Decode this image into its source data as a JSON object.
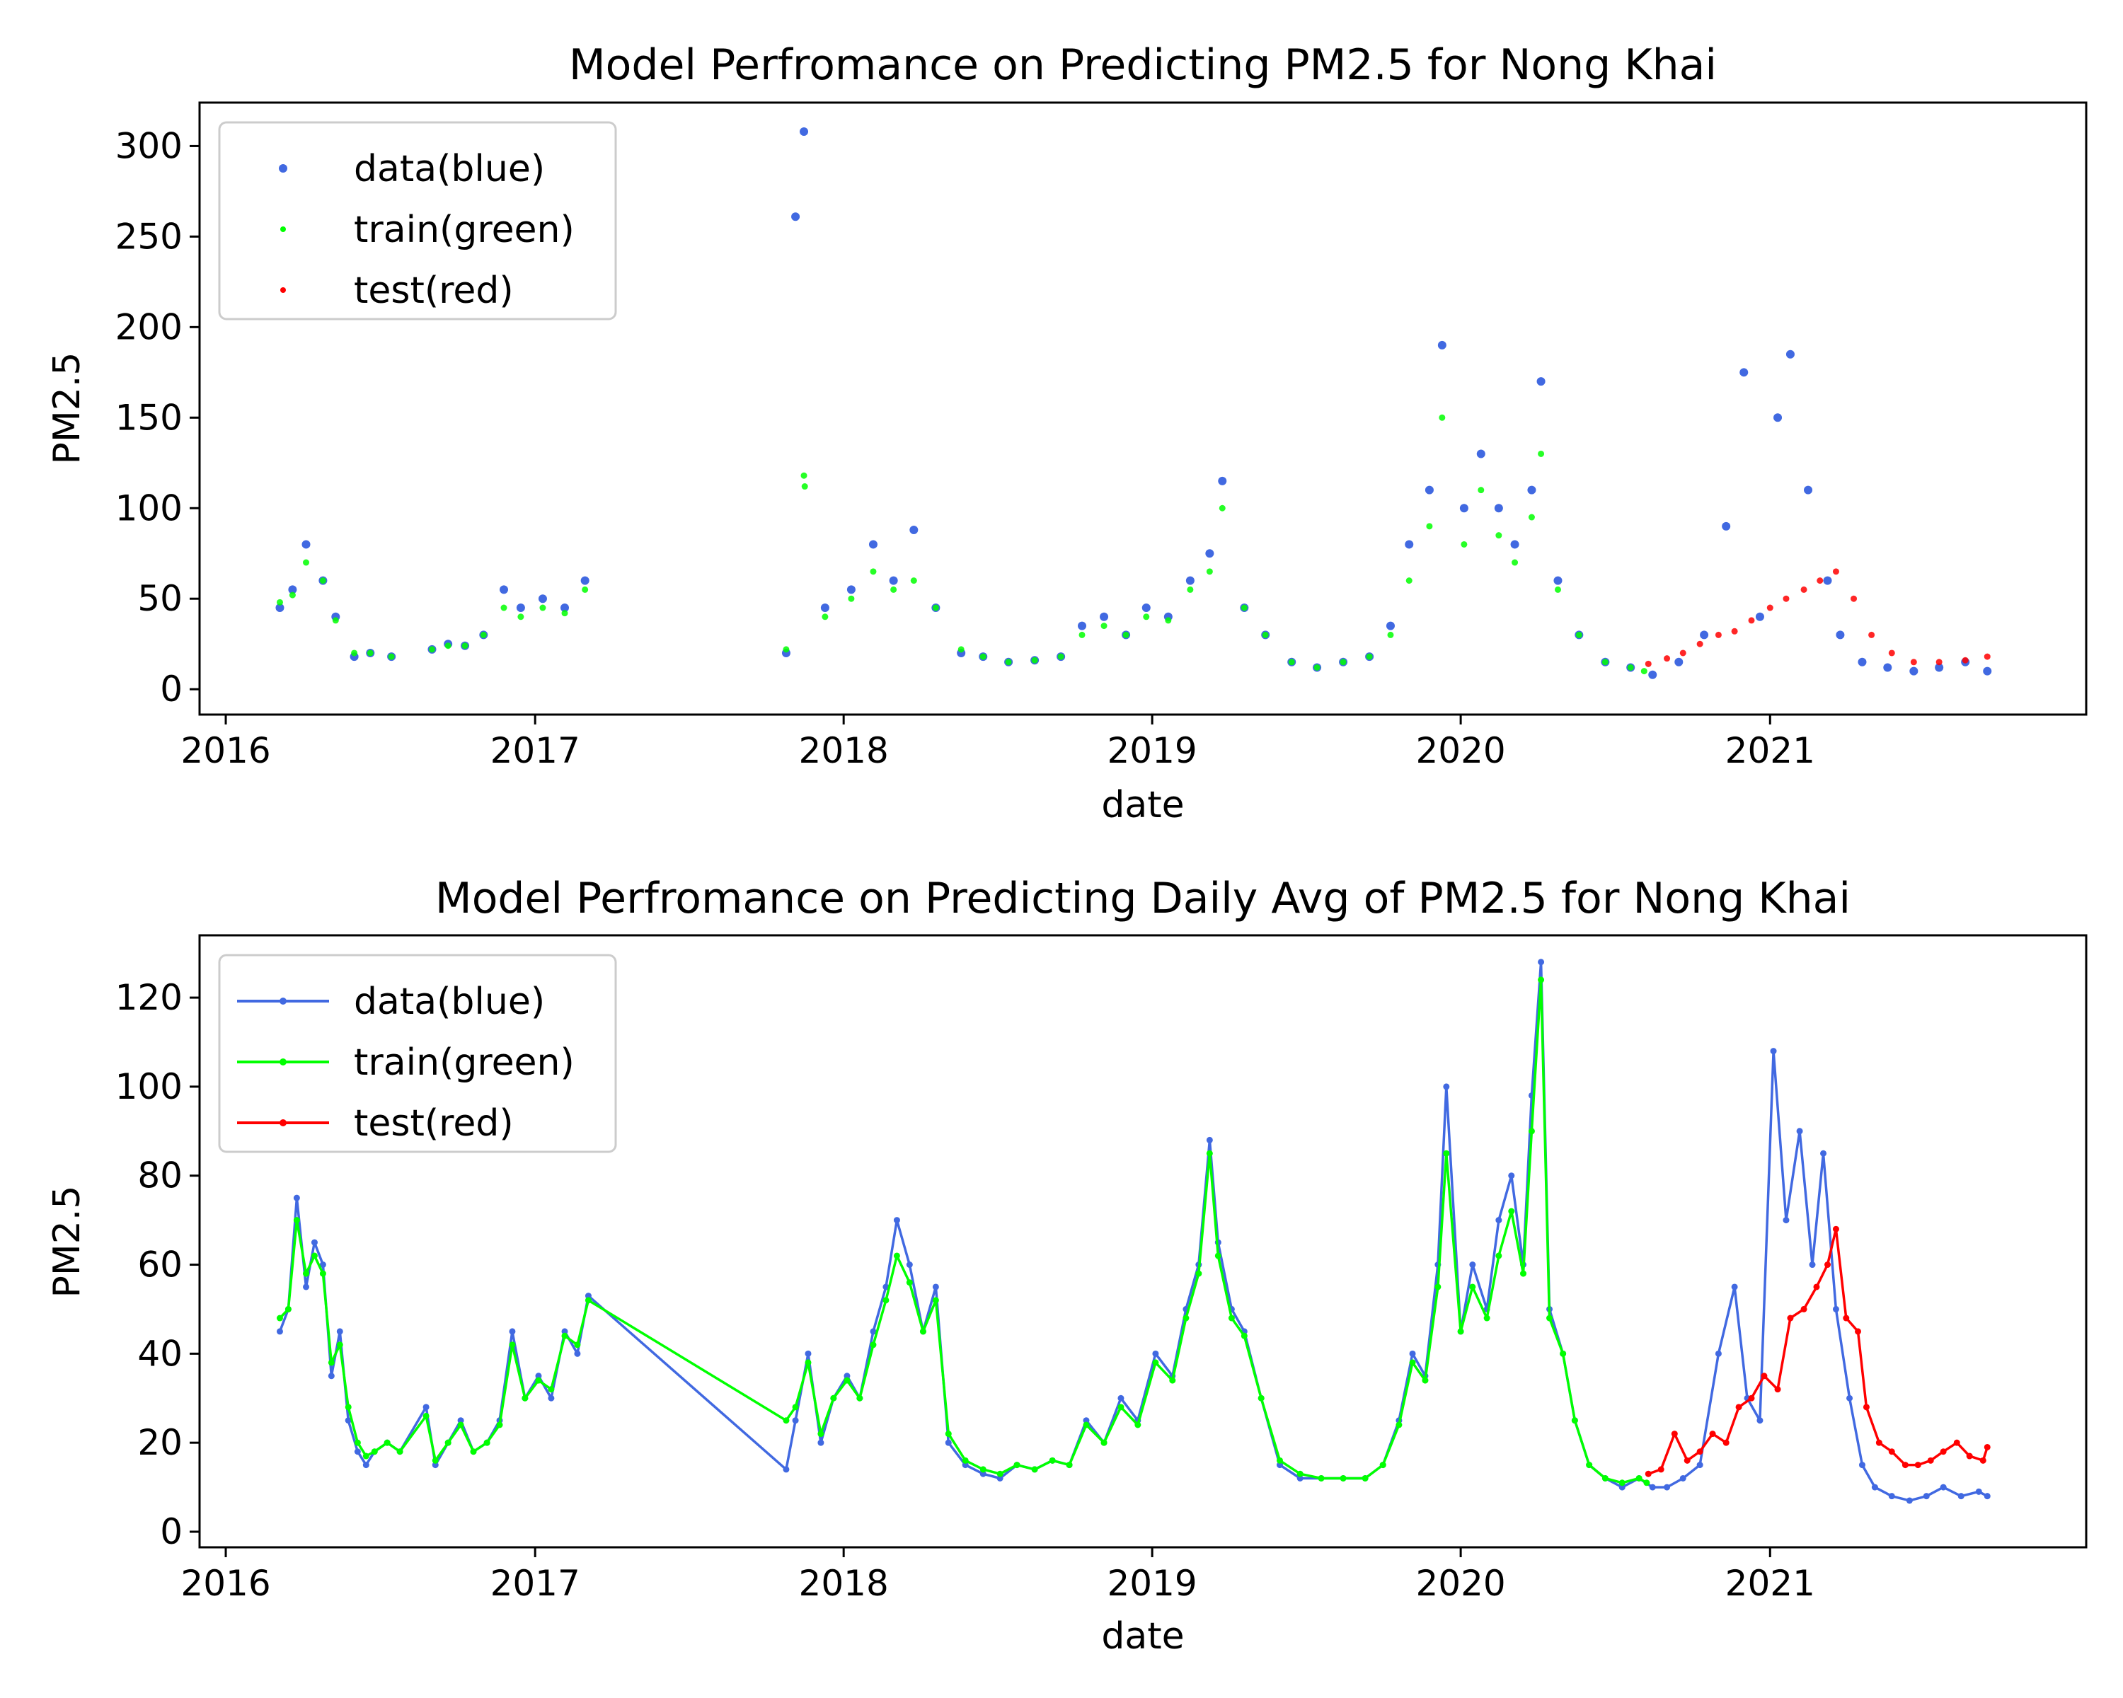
{
  "chart_data": [
    {
      "type": "scatter",
      "title": "Model Perfromance on Predicting PM2.5 for Nong Khai",
      "xlabel": "date",
      "ylabel": "PM2.5",
      "x_ticks": [
        "2016",
        "2017",
        "2018",
        "2019",
        "2020",
        "2021"
      ],
      "y_ticks": [
        "0",
        "50",
        "100",
        "150",
        "200",
        "250",
        "300"
      ],
      "xlim": [
        "2015-12-01",
        "2022-01-10"
      ],
      "ylim": [
        -14,
        324
      ],
      "legend": {
        "placement": "top-left",
        "entries": [
          "data(blue)",
          "train(green)",
          "test(red)"
        ]
      },
      "series": [
        {
          "name": "data(blue)",
          "color": "#4169e1",
          "x": [
            "2016-03-05",
            "2016-03-20",
            "2016-04-05",
            "2016-04-25",
            "2016-05-10",
            "2016-06-01",
            "2016-06-20",
            "2016-07-15",
            "2016-09-01",
            "2016-09-20",
            "2016-10-10",
            "2016-11-01",
            "2016-11-25",
            "2016-12-15",
            "2017-01-10",
            "2017-02-05",
            "2017-03-01",
            "2017-10-25",
            "2017-11-05",
            "2017-11-15",
            "2017-12-10",
            "2018-01-10",
            "2018-02-05",
            "2018-03-01",
            "2018-03-25",
            "2018-04-20",
            "2018-05-20",
            "2018-06-15",
            "2018-07-15",
            "2018-08-15",
            "2018-09-15",
            "2018-10-10",
            "2018-11-05",
            "2018-12-01",
            "2018-12-25",
            "2019-01-20",
            "2019-02-15",
            "2019-03-10",
            "2019-03-25",
            "2019-04-20",
            "2019-05-15",
            "2019-06-15",
            "2019-07-15",
            "2019-08-15",
            "2019-09-15",
            "2019-10-10",
            "2019-11-01",
            "2019-11-25",
            "2019-12-10",
            "2020-01-05",
            "2020-01-25",
            "2020-02-15",
            "2020-03-05",
            "2020-03-25",
            "2020-04-05",
            "2020-04-25",
            "2020-05-20",
            "2020-06-20",
            "2020-07-20",
            "2020-08-15",
            "2020-09-15",
            "2020-10-15",
            "2020-11-10",
            "2020-12-01",
            "2020-12-20",
            "2021-01-10",
            "2021-01-25",
            "2021-02-15",
            "2021-03-10",
            "2021-03-25",
            "2021-04-20",
            "2021-05-20",
            "2021-06-20",
            "2021-07-20",
            "2021-08-20",
            "2021-09-15"
          ],
          "y": [
            45,
            55,
            80,
            60,
            40,
            18,
            20,
            18,
            22,
            25,
            24,
            30,
            55,
            45,
            50,
            45,
            60,
            20,
            261,
            308,
            45,
            55,
            80,
            60,
            88,
            45,
            20,
            18,
            15,
            16,
            18,
            35,
            40,
            30,
            45,
            40,
            60,
            75,
            115,
            45,
            30,
            15,
            12,
            15,
            18,
            35,
            80,
            110,
            190,
            100,
            130,
            100,
            80,
            110,
            170,
            60,
            30,
            15,
            12,
            8,
            15,
            30,
            90,
            175,
            40,
            150,
            185,
            110,
            60,
            30,
            15,
            12,
            10,
            12,
            15,
            10
          ]
        },
        {
          "name": "train(green)",
          "color": "#00ff00",
          "x": [
            "2016-03-05",
            "2016-03-20",
            "2016-04-05",
            "2016-04-25",
            "2016-05-10",
            "2016-06-01",
            "2016-06-20",
            "2016-07-15",
            "2016-09-01",
            "2016-09-20",
            "2016-10-10",
            "2016-11-01",
            "2016-11-25",
            "2016-12-15",
            "2017-01-10",
            "2017-02-05",
            "2017-03-01",
            "2017-10-25",
            "2017-11-15",
            "2017-11-16",
            "2017-12-10",
            "2018-01-10",
            "2018-02-05",
            "2018-03-01",
            "2018-03-25",
            "2018-04-20",
            "2018-05-20",
            "2018-06-15",
            "2018-07-15",
            "2018-08-15",
            "2018-09-15",
            "2018-10-10",
            "2018-11-05",
            "2018-12-01",
            "2018-12-25",
            "2019-01-20",
            "2019-02-15",
            "2019-03-10",
            "2019-03-25",
            "2019-04-20",
            "2019-05-15",
            "2019-06-15",
            "2019-07-15",
            "2019-08-15",
            "2019-09-15",
            "2019-10-10",
            "2019-11-01",
            "2019-11-25",
            "2019-12-10",
            "2020-01-05",
            "2020-01-25",
            "2020-02-15",
            "2020-03-05",
            "2020-03-25",
            "2020-04-05",
            "2020-04-25",
            "2020-05-20",
            "2020-06-20",
            "2020-07-20",
            "2020-08-05"
          ],
          "y": [
            48,
            52,
            70,
            60,
            38,
            20,
            20,
            18,
            22,
            24,
            24,
            30,
            45,
            40,
            45,
            42,
            55,
            22,
            118,
            112,
            40,
            50,
            65,
            55,
            60,
            45,
            22,
            18,
            15,
            16,
            18,
            30,
            35,
            30,
            40,
            38,
            55,
            65,
            100,
            45,
            30,
            15,
            12,
            15,
            18,
            30,
            60,
            90,
            150,
            80,
            110,
            85,
            70,
            95,
            130,
            55,
            30,
            15,
            12,
            10
          ]
        },
        {
          "name": "test(red)",
          "color": "#ff0000",
          "x": [
            "2020-08-10",
            "2020-09-01",
            "2020-09-20",
            "2020-10-10",
            "2020-11-01",
            "2020-11-20",
            "2020-12-10",
            "2021-01-01",
            "2021-01-20",
            "2021-02-10",
            "2021-03-01",
            "2021-03-20",
            "2021-04-10",
            "2021-05-01",
            "2021-05-25",
            "2021-06-20",
            "2021-07-20",
            "2021-08-20",
            "2021-09-15"
          ],
          "y": [
            14,
            17,
            20,
            25,
            30,
            32,
            38,
            45,
            50,
            55,
            60,
            65,
            50,
            30,
            20,
            15,
            15,
            16,
            18
          ]
        }
      ]
    },
    {
      "type": "line",
      "title": "Model Perfromance on Predicting Daily Avg of PM2.5 for Nong Khai",
      "xlabel": "date",
      "ylabel": "PM2.5",
      "x_ticks": [
        "2016",
        "2017",
        "2018",
        "2019",
        "2020",
        "2021"
      ],
      "y_ticks": [
        "0",
        "20",
        "40",
        "60",
        "80",
        "100",
        "120"
      ],
      "xlim": [
        "2015-12-01",
        "2022-01-10"
      ],
      "ylim": [
        -3.5,
        134
      ],
      "legend": {
        "placement": "top-left",
        "entries": [
          "data(blue)",
          "train(green)",
          "test(red)"
        ]
      },
      "series": [
        {
          "name": "data(blue)",
          "color": "#4169e1",
          "x": [
            "2016-03-05",
            "2016-03-15",
            "2016-03-25",
            "2016-04-05",
            "2016-04-15",
            "2016-04-25",
            "2016-05-05",
            "2016-05-15",
            "2016-05-25",
            "2016-06-05",
            "2016-06-15",
            "2016-06-25",
            "2016-07-10",
            "2016-07-25",
            "2016-08-25",
            "2016-09-05",
            "2016-09-20",
            "2016-10-05",
            "2016-10-20",
            "2016-11-05",
            "2016-11-20",
            "2016-12-05",
            "2016-12-20",
            "2017-01-05",
            "2017-01-20",
            "2017-02-05",
            "2017-02-20",
            "2017-03-05",
            "2017-10-25",
            "2017-11-05",
            "2017-11-20",
            "2017-12-05",
            "2017-12-20",
            "2018-01-05",
            "2018-01-20",
            "2018-02-05",
            "2018-02-20",
            "2018-03-05",
            "2018-03-20",
            "2018-04-05",
            "2018-04-20",
            "2018-05-05",
            "2018-05-25",
            "2018-06-15",
            "2018-07-05",
            "2018-07-25",
            "2018-08-15",
            "2018-09-05",
            "2018-09-25",
            "2018-10-15",
            "2018-11-05",
            "2018-11-25",
            "2018-12-15",
            "2019-01-05",
            "2019-01-25",
            "2019-02-10",
            "2019-02-25",
            "2019-03-10",
            "2019-03-20",
            "2019-04-05",
            "2019-04-20",
            "2019-05-10",
            "2019-06-01",
            "2019-06-25",
            "2019-07-20",
            "2019-08-15",
            "2019-09-10",
            "2019-10-01",
            "2019-10-20",
            "2019-11-05",
            "2019-11-20",
            "2019-12-05",
            "2019-12-15",
            "2020-01-01",
            "2020-01-15",
            "2020-02-01",
            "2020-02-15",
            "2020-03-01",
            "2020-03-15",
            "2020-03-25",
            "2020-04-05",
            "2020-04-15",
            "2020-05-01",
            "2020-05-15",
            "2020-06-01",
            "2020-06-20",
            "2020-07-10",
            "2020-07-30",
            "2020-08-15",
            "2020-09-01",
            "2020-09-20",
            "2020-10-10",
            "2020-11-01",
            "2020-11-20",
            "2020-12-05",
            "2020-12-20",
            "2021-01-05",
            "2021-01-20",
            "2021-02-05",
            "2021-02-20",
            "2021-03-05",
            "2021-03-20",
            "2021-04-05",
            "2021-04-20",
            "2021-05-05",
            "2021-05-25",
            "2021-06-15",
            "2021-07-05",
            "2021-07-25",
            "2021-08-15",
            "2021-09-05",
            "2021-09-15"
          ],
          "y": [
            45,
            50,
            75,
            55,
            65,
            60,
            35,
            45,
            25,
            18,
            15,
            18,
            20,
            18,
            28,
            15,
            20,
            25,
            18,
            20,
            25,
            45,
            30,
            35,
            30,
            45,
            40,
            53,
            14,
            25,
            40,
            20,
            30,
            35,
            30,
            45,
            55,
            70,
            60,
            45,
            55,
            20,
            15,
            13,
            12,
            15,
            14,
            16,
            15,
            25,
            20,
            30,
            25,
            40,
            35,
            50,
            60,
            88,
            65,
            50,
            45,
            30,
            15,
            12,
            12,
            12,
            12,
            15,
            25,
            40,
            35,
            60,
            100,
            45,
            60,
            50,
            70,
            80,
            60,
            98,
            128,
            50,
            40,
            25,
            15,
            12,
            10,
            12,
            10,
            10,
            12,
            15,
            40,
            55,
            30,
            25,
            108,
            70,
            90,
            60,
            85,
            50,
            30,
            15,
            10,
            8,
            7,
            8,
            10,
            8,
            9,
            8
          ]
        },
        {
          "name": "train(green)",
          "color": "#00ff00",
          "x": [
            "2016-03-05",
            "2016-03-15",
            "2016-03-25",
            "2016-04-05",
            "2016-04-15",
            "2016-04-25",
            "2016-05-05",
            "2016-05-15",
            "2016-05-25",
            "2016-06-05",
            "2016-06-15",
            "2016-06-25",
            "2016-07-10",
            "2016-07-25",
            "2016-08-25",
            "2016-09-05",
            "2016-09-20",
            "2016-10-05",
            "2016-10-20",
            "2016-11-05",
            "2016-11-20",
            "2016-12-05",
            "2016-12-20",
            "2017-01-05",
            "2017-01-20",
            "2017-02-05",
            "2017-02-20",
            "2017-03-05",
            "2017-10-25",
            "2017-11-05",
            "2017-11-20",
            "2017-12-05",
            "2017-12-20",
            "2018-01-05",
            "2018-01-20",
            "2018-02-05",
            "2018-02-20",
            "2018-03-05",
            "2018-03-20",
            "2018-04-05",
            "2018-04-20",
            "2018-05-05",
            "2018-05-25",
            "2018-06-15",
            "2018-07-05",
            "2018-07-25",
            "2018-08-15",
            "2018-09-05",
            "2018-09-25",
            "2018-10-15",
            "2018-11-05",
            "2018-11-25",
            "2018-12-15",
            "2019-01-05",
            "2019-01-25",
            "2019-02-10",
            "2019-02-25",
            "2019-03-10",
            "2019-03-20",
            "2019-04-05",
            "2019-04-20",
            "2019-05-10",
            "2019-06-01",
            "2019-06-25",
            "2019-07-20",
            "2019-08-15",
            "2019-09-10",
            "2019-10-01",
            "2019-10-20",
            "2019-11-05",
            "2019-11-20",
            "2019-12-05",
            "2019-12-15",
            "2020-01-01",
            "2020-01-15",
            "2020-02-01",
            "2020-02-15",
            "2020-03-01",
            "2020-03-15",
            "2020-03-25",
            "2020-04-05",
            "2020-04-15",
            "2020-05-01",
            "2020-05-15",
            "2020-06-01",
            "2020-06-20",
            "2020-07-10",
            "2020-07-30",
            "2020-08-08"
          ],
          "y": [
            48,
            50,
            70,
            58,
            62,
            58,
            38,
            42,
            28,
            20,
            17,
            18,
            20,
            18,
            26,
            16,
            20,
            24,
            18,
            20,
            24,
            42,
            30,
            34,
            32,
            44,
            42,
            52,
            25,
            28,
            38,
            22,
            30,
            34,
            30,
            42,
            52,
            62,
            56,
            45,
            52,
            22,
            16,
            14,
            13,
            15,
            14,
            16,
            15,
            24,
            20,
            28,
            24,
            38,
            34,
            48,
            58,
            85,
            62,
            48,
            44,
            30,
            16,
            13,
            12,
            12,
            12,
            15,
            24,
            38,
            34,
            55,
            85,
            45,
            55,
            48,
            62,
            72,
            58,
            90,
            124,
            48,
            40,
            25,
            15,
            12,
            11,
            12,
            11
          ]
        },
        {
          "name": "test(red)",
          "color": "#ff0000",
          "x": [
            "2020-08-10",
            "2020-08-25",
            "2020-09-10",
            "2020-09-25",
            "2020-10-10",
            "2020-10-25",
            "2020-11-10",
            "2020-11-25",
            "2020-12-10",
            "2020-12-25",
            "2021-01-10",
            "2021-01-25",
            "2021-02-10",
            "2021-02-25",
            "2021-03-10",
            "2021-03-20",
            "2021-04-01",
            "2021-04-15",
            "2021-04-25",
            "2021-05-10",
            "2021-05-25",
            "2021-06-10",
            "2021-06-25",
            "2021-07-10",
            "2021-07-25",
            "2021-08-10",
            "2021-08-25",
            "2021-09-10",
            "2021-09-15"
          ],
          "y": [
            13,
            14,
            22,
            16,
            18,
            22,
            20,
            28,
            30,
            35,
            32,
            48,
            50,
            55,
            60,
            68,
            48,
            45,
            28,
            20,
            18,
            15,
            15,
            16,
            18,
            20,
            17,
            16,
            19
          ]
        }
      ]
    }
  ]
}
